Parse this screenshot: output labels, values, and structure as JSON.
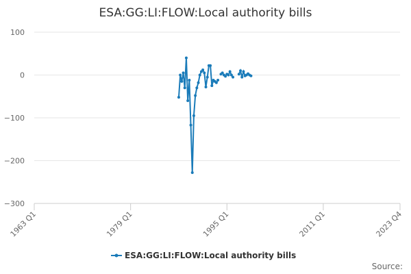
{
  "chart_data": {
    "type": "line",
    "title": "ESA:GG:LI:FLOW:Local authority bills",
    "x": [
      "1987 Q1",
      "1987 Q2",
      "1987 Q3",
      "1987 Q4",
      "1988 Q1",
      "1988 Q2",
      "1988 Q3",
      "1988 Q4",
      "1989 Q1",
      "1989 Q2",
      "1989 Q3",
      "1989 Q4",
      "1990 Q1",
      "1990 Q2",
      "1990 Q3",
      "1990 Q4",
      "1991 Q1",
      "1991 Q2",
      "1991 Q3",
      "1991 Q4",
      "1992 Q1",
      "1992 Q2",
      "1992 Q3",
      "1992 Q4",
      "1993 Q1",
      "1993 Q2",
      "1993 Q3",
      "1993 Q4",
      "1994 Q1",
      "1994 Q2",
      "1994 Q3",
      "1994 Q4",
      "1995 Q1",
      "1995 Q2",
      "1995 Q3",
      "1995 Q4",
      "1996 Q1",
      "1996 Q2",
      "1996 Q3",
      "1996 Q4",
      "1997 Q1",
      "1997 Q2",
      "1997 Q3",
      "1997 Q4",
      "1998 Q1",
      "1998 Q2",
      "1998 Q3",
      "1998 Q4",
      "1999 Q1"
    ],
    "series": [
      {
        "name": "ESA:GG:LI:FLOW:Local authority bills",
        "color": "#1a7bb9",
        "values": [
          -52,
          0,
          -15,
          5,
          -30,
          40,
          -60,
          -12,
          -117,
          -228,
          -95,
          -48,
          -30,
          -18,
          0,
          8,
          12,
          5,
          -28,
          -5,
          22,
          22,
          -25,
          -12,
          -15,
          -18,
          -12,
          null,
          2,
          5,
          0,
          -3,
          2,
          0,
          8,
          0,
          -5,
          null,
          null,
          null,
          2,
          10,
          -5,
          8,
          -2,
          0,
          3,
          0,
          -2
        ]
      }
    ],
    "xlim": [
      "1963 Q1",
      "2023 Q4"
    ],
    "xticks": [
      "1963 Q1",
      "1979 Q1",
      "1995 Q1",
      "2011 Q1",
      "2023 Q4"
    ],
    "ylim": [
      -300,
      100
    ],
    "yticks": [
      100,
      0,
      {
        "value": -100,
        "label": "−100"
      },
      {
        "value": -200,
        "label": "−200"
      },
      {
        "value": -300,
        "label": "−300"
      }
    ],
    "grid": true,
    "source_label": "Source:"
  }
}
